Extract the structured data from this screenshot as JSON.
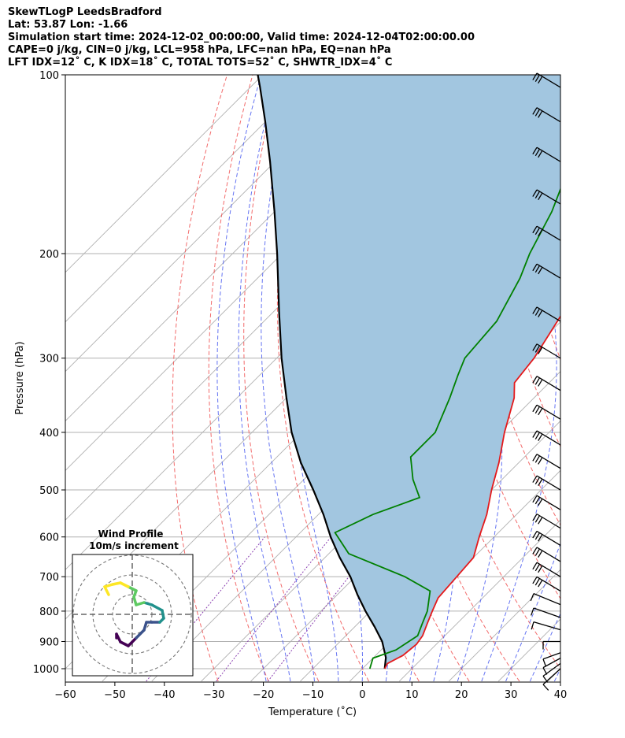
{
  "header": {
    "line1": "SkewTLogP LeedsBradford",
    "line2": "Lat: 53.87   Lon: -1.66",
    "line3": "Simulation start time: 2024-12-02_00:00:00, Valid time: 2024-12-04T02:00:00.00",
    "line4": "CAPE=0 j/kg, CIN=0 j/kg, LCL=958 hPa, LFC=nan hPa, EQ=nan hPa",
    "line5": "LFT IDX=12˚ C, K IDX=18˚ C, TOTAL TOTS=52˚ C, SHWTR_IDX=4˚ C"
  },
  "chart_data": {
    "type": "line",
    "xlabel": "Temperature (˚C)",
    "ylabel": "Pressure (hPa)",
    "xlim": [
      -60,
      40
    ],
    "ylim": [
      1050,
      100
    ],
    "y_scale": "log",
    "skew": true,
    "grid": true,
    "x_ticks": [
      -60,
      -50,
      -40,
      -30,
      -20,
      -10,
      0,
      10,
      20,
      30,
      40
    ],
    "x_tick_labels": [
      "−60",
      "−50",
      "−40",
      "−30",
      "−20",
      "−10",
      "0",
      "10",
      "20",
      "30",
      "40"
    ],
    "y_ticks": [
      1000,
      900,
      800,
      700,
      600,
      500,
      400,
      300,
      200,
      100
    ],
    "y_tick_labels": [
      "1000",
      "900",
      "800",
      "700",
      "600",
      "500",
      "400",
      "300",
      "200",
      "100"
    ],
    "series": [
      {
        "role": "temperature",
        "color": "#e41a1c",
        "points": [
          [
            4.5,
            1000
          ],
          [
            4,
            980
          ],
          [
            5.5,
            950
          ],
          [
            6,
            910
          ],
          [
            5.5,
            880
          ],
          [
            4,
            840
          ],
          [
            2.5,
            800
          ],
          [
            1,
            760
          ],
          [
            0.5,
            700
          ],
          [
            0,
            650
          ],
          [
            -3,
            600
          ],
          [
            -6,
            550
          ],
          [
            -10,
            500
          ],
          [
            -14,
            450
          ],
          [
            -19,
            400
          ],
          [
            -24,
            350
          ],
          [
            -27,
            330
          ],
          [
            -28,
            300
          ],
          [
            -31.5,
            250
          ],
          [
            -36,
            215
          ],
          [
            -38.5,
            200
          ],
          [
            -38,
            180
          ],
          [
            -43,
            160
          ],
          [
            -46,
            140
          ],
          [
            -50.5,
            125
          ],
          [
            -54,
            110
          ],
          [
            -57,
            100
          ]
        ]
      },
      {
        "role": "dewpoint",
        "color": "#008000",
        "points": [
          [
            1.5,
            1000
          ],
          [
            0,
            960
          ],
          [
            3,
            930
          ],
          [
            4.5,
            880
          ],
          [
            3,
            840
          ],
          [
            1.5,
            800
          ],
          [
            -2,
            740
          ],
          [
            -10,
            700
          ],
          [
            -26,
            640
          ],
          [
            -33,
            590
          ],
          [
            -29,
            550
          ],
          [
            -23,
            515
          ],
          [
            -28,
            480
          ],
          [
            -33,
            440
          ],
          [
            -33,
            400
          ],
          [
            -37,
            350
          ],
          [
            -40,
            320
          ],
          [
            -42,
            300
          ],
          [
            -43,
            260
          ],
          [
            -47,
            220
          ],
          [
            -50,
            200
          ],
          [
            -54,
            170
          ],
          [
            -58,
            150
          ],
          [
            -60,
            130
          ],
          [
            -63,
            110
          ],
          [
            -67,
            100
          ]
        ]
      },
      {
        "role": "parcel",
        "color": "#000000",
        "points": [
          [
            4.5,
            1000
          ],
          [
            2.5,
            958
          ],
          [
            -1.5,
            900
          ],
          [
            -6,
            850
          ],
          [
            -11,
            800
          ],
          [
            -16,
            750
          ],
          [
            -21,
            700
          ],
          [
            -27,
            650
          ],
          [
            -33,
            600
          ],
          [
            -39,
            550
          ],
          [
            -46,
            500
          ],
          [
            -54,
            450
          ],
          [
            -62,
            400
          ],
          [
            -70,
            350
          ],
          [
            -79,
            300
          ],
          [
            -89,
            250
          ],
          [
            -101,
            200
          ],
          [
            -110,
            170
          ],
          [
            -121,
            140
          ],
          [
            -130,
            120
          ],
          [
            -138,
            105
          ],
          [
            -141,
            100
          ]
        ]
      }
    ],
    "shaded_region": {
      "description": "parcel to temperature area",
      "color": "#a2c6e0"
    },
    "wind_barbs": {
      "color": "#000000",
      "pressures": [
        1000,
        980,
        960,
        940,
        900,
        860,
        820,
        780,
        740,
        700,
        660,
        620,
        580,
        540,
        500,
        460,
        420,
        380,
        340,
        300,
        260,
        220,
        190,
        165,
        140,
        120,
        105
      ]
    },
    "inset": {
      "title": "Wind Profile",
      "subtitle": "10m/s increment",
      "rings": 3,
      "hodograph_colors": [
        "#440154",
        "#3b528b",
        "#21918c",
        "#5ec962",
        "#fde725"
      ],
      "hodograph": [
        [
          -2,
          -3
        ],
        [
          -2,
          -2.5
        ],
        [
          -1.5,
          -3.5
        ],
        [
          -0.5,
          -4
        ],
        [
          0.5,
          -3
        ],
        [
          1.5,
          -2
        ],
        [
          1.8,
          -1
        ],
        [
          2.5,
          -1
        ],
        [
          3.5,
          -1
        ],
        [
          4,
          -0.5
        ],
        [
          3.8,
          0.5
        ],
        [
          2.5,
          1.2
        ],
        [
          1.5,
          1.5
        ],
        [
          0.5,
          1.2
        ],
        [
          0.2,
          2.2
        ],
        [
          0.5,
          3
        ],
        [
          -0.5,
          3.5
        ],
        [
          -1.5,
          4
        ],
        [
          -2.5,
          3.8
        ],
        [
          -3.5,
          3.5
        ],
        [
          -3,
          2.5
        ]
      ]
    }
  }
}
